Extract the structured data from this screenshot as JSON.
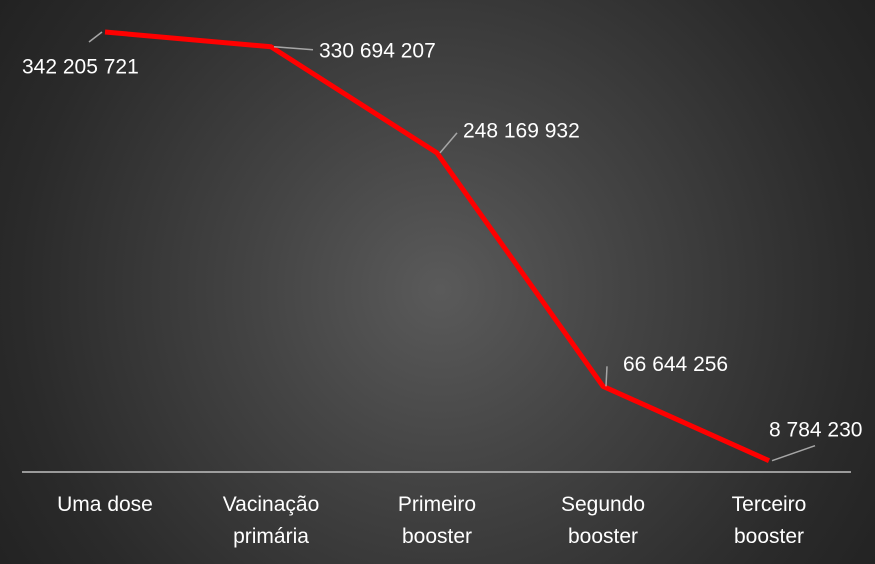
{
  "chart_data": {
    "type": "line",
    "categories": [
      "Uma dose",
      "Vacinação primária",
      "Primeiro booster",
      "Segundo booster",
      "Terceiro booster"
    ],
    "values": [
      342205721,
      330694207,
      248169932,
      66644256,
      8784230
    ],
    "value_labels": [
      "342 205 721",
      "330 694 207",
      "248 169 932",
      "66 644 256",
      "8 784 230"
    ],
    "color": "#ff0000"
  }
}
